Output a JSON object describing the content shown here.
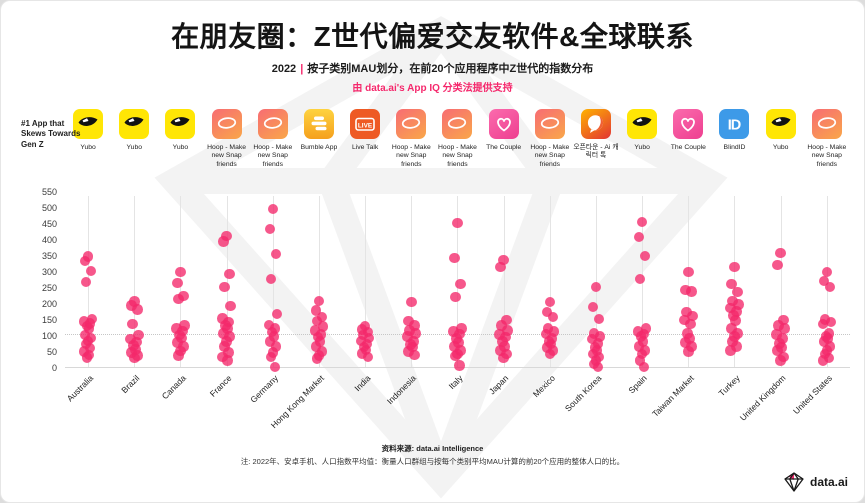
{
  "accent": "#f5286c",
  "header": {
    "title": "在朋友圈：Z世代偏爱交友软件&全球联系",
    "year": "2022",
    "divider": "|",
    "subtitle": "按子类别MAU划分，在前20个应用程序中Z世代的指数分布",
    "powered": "由 data.ai's App IQ 分类法提供支持"
  },
  "apps_row_label": "#1 App that Skews Towards Gen Z",
  "chart_data": {
    "type": "scatter",
    "ylim": [
      0,
      550
    ],
    "ytick_step": 50,
    "reference_line": 100,
    "dot_color": "#f3286a",
    "grid": "vertical",
    "countries": [
      {
        "name": "Australia",
        "app": "Yubo",
        "icon": "yubo",
        "values": [
          345,
          332,
          300,
          265,
          150,
          143,
          136,
          128,
          120,
          100,
          90,
          82,
          72,
          60,
          48,
          38,
          30
        ]
      },
      {
        "name": "Brazil",
        "app": "Yubo",
        "icon": "yubo",
        "values": [
          205,
          192,
          180,
          135,
          100,
          88,
          78,
          68,
          55,
          45,
          36,
          28
        ]
      },
      {
        "name": "Canada",
        "app": "Yubo",
        "icon": "yubo",
        "values": [
          297,
          262,
          222,
          212,
          130,
          121,
          112,
          100,
          90,
          76,
          64,
          50,
          36
        ]
      },
      {
        "name": "France",
        "app": "Hoop - Make new Snap friends",
        "icon": "hoop",
        "values": [
          410,
          393,
          290,
          250,
          190,
          152,
          140,
          130,
          120,
          105,
          95,
          80,
          64,
          46,
          32,
          20
        ]
      },
      {
        "name": "Germany",
        "app": "Hoop - Make new Snap friends",
        "icon": "hoop",
        "values": [
          494,
          431,
          353,
          275,
          166,
          132,
          120,
          110,
          95,
          80,
          64,
          46,
          32,
          0
        ]
      },
      {
        "name": "Hong Kong Market",
        "app": "Bumble App",
        "icon": "bumble",
        "values": [
          206,
          176,
          156,
          144,
          126,
          114,
          102,
          94,
          80,
          64,
          48,
          36,
          26
        ]
      },
      {
        "name": "India",
        "app": "Live Talk",
        "icon": "livetalk",
        "values": [
          128,
          118,
          109,
          100,
          91,
          82,
          72,
          63,
          53,
          42,
          31
        ]
      },
      {
        "name": "Indonesia",
        "app": "Hoop - Make new Snap friends",
        "icon": "hoop",
        "values": [
          203,
          144,
          129,
          114,
          104,
          95,
          80,
          71,
          63,
          48,
          38
        ]
      },
      {
        "name": "Italy",
        "app": "Hoop - Make new Snap friends",
        "icon": "hoop",
        "values": [
          450,
          341,
          259,
          219,
          120,
          111,
          103,
          89,
          76,
          64,
          51,
          41,
          34,
          4
        ]
      },
      {
        "name": "Japan",
        "app": "The Couple",
        "icon": "couple",
        "values": [
          334,
          313,
          147,
          129,
          114,
          101,
          94,
          79,
          64,
          51,
          41,
          28
        ]
      },
      {
        "name": "Mexico",
        "app": "Hoop - Make new Snap friends",
        "icon": "hoop",
        "values": [
          203,
          172,
          156,
          120,
          111,
          103,
          89,
          79,
          72,
          61,
          51,
          40
        ]
      },
      {
        "name": "South Korea",
        "app": "오픈타운 - Ai 캐릭터 톡",
        "icon": "opentown",
        "values": [
          250,
          188,
          150,
          104,
          95,
          88,
          73,
          61,
          51,
          41,
          31,
          20,
          10,
          0
        ]
      },
      {
        "name": "Spain",
        "app": "Yubo",
        "icon": "yubo",
        "values": [
          453,
          406,
          347,
          275,
          120,
          111,
          103,
          95,
          80,
          64,
          51,
          41,
          20,
          0
        ]
      },
      {
        "name": "Taiwan Market",
        "app": "The Couple",
        "icon": "couple",
        "values": [
          297,
          241,
          236,
          172,
          159,
          147,
          135,
          104,
          89,
          76,
          64,
          48
        ]
      },
      {
        "name": "Turkey",
        "app": "BlindID",
        "icon": "blindid",
        "values": [
          313,
          259,
          234,
          206,
          196,
          185,
          173,
          161,
          145,
          120,
          104,
          95,
          80,
          64,
          51
        ]
      },
      {
        "name": "United Kingdom",
        "app": "Yubo",
        "icon": "yubo",
        "values": [
          356,
          319,
          147,
          129,
          120,
          101,
          89,
          73,
          61,
          51,
          32,
          20
        ]
      },
      {
        "name": "United States",
        "app": "Hoop - Make new Snap friends",
        "icon": "hoop",
        "values": [
          297,
          269,
          250,
          148,
          140,
          134,
          104,
          95,
          89,
          80,
          64,
          51,
          41,
          28,
          20
        ]
      }
    ]
  },
  "footer": {
    "source_label": "资料来源:",
    "source_value": "data.ai Intelligence",
    "note": "注: 2022年、安卓手机、人口指数平均值：衡量人口群组与按每个类别平均MAU计算的前20个应用的整体人口的比。"
  },
  "brand": {
    "name": "data.ai"
  }
}
